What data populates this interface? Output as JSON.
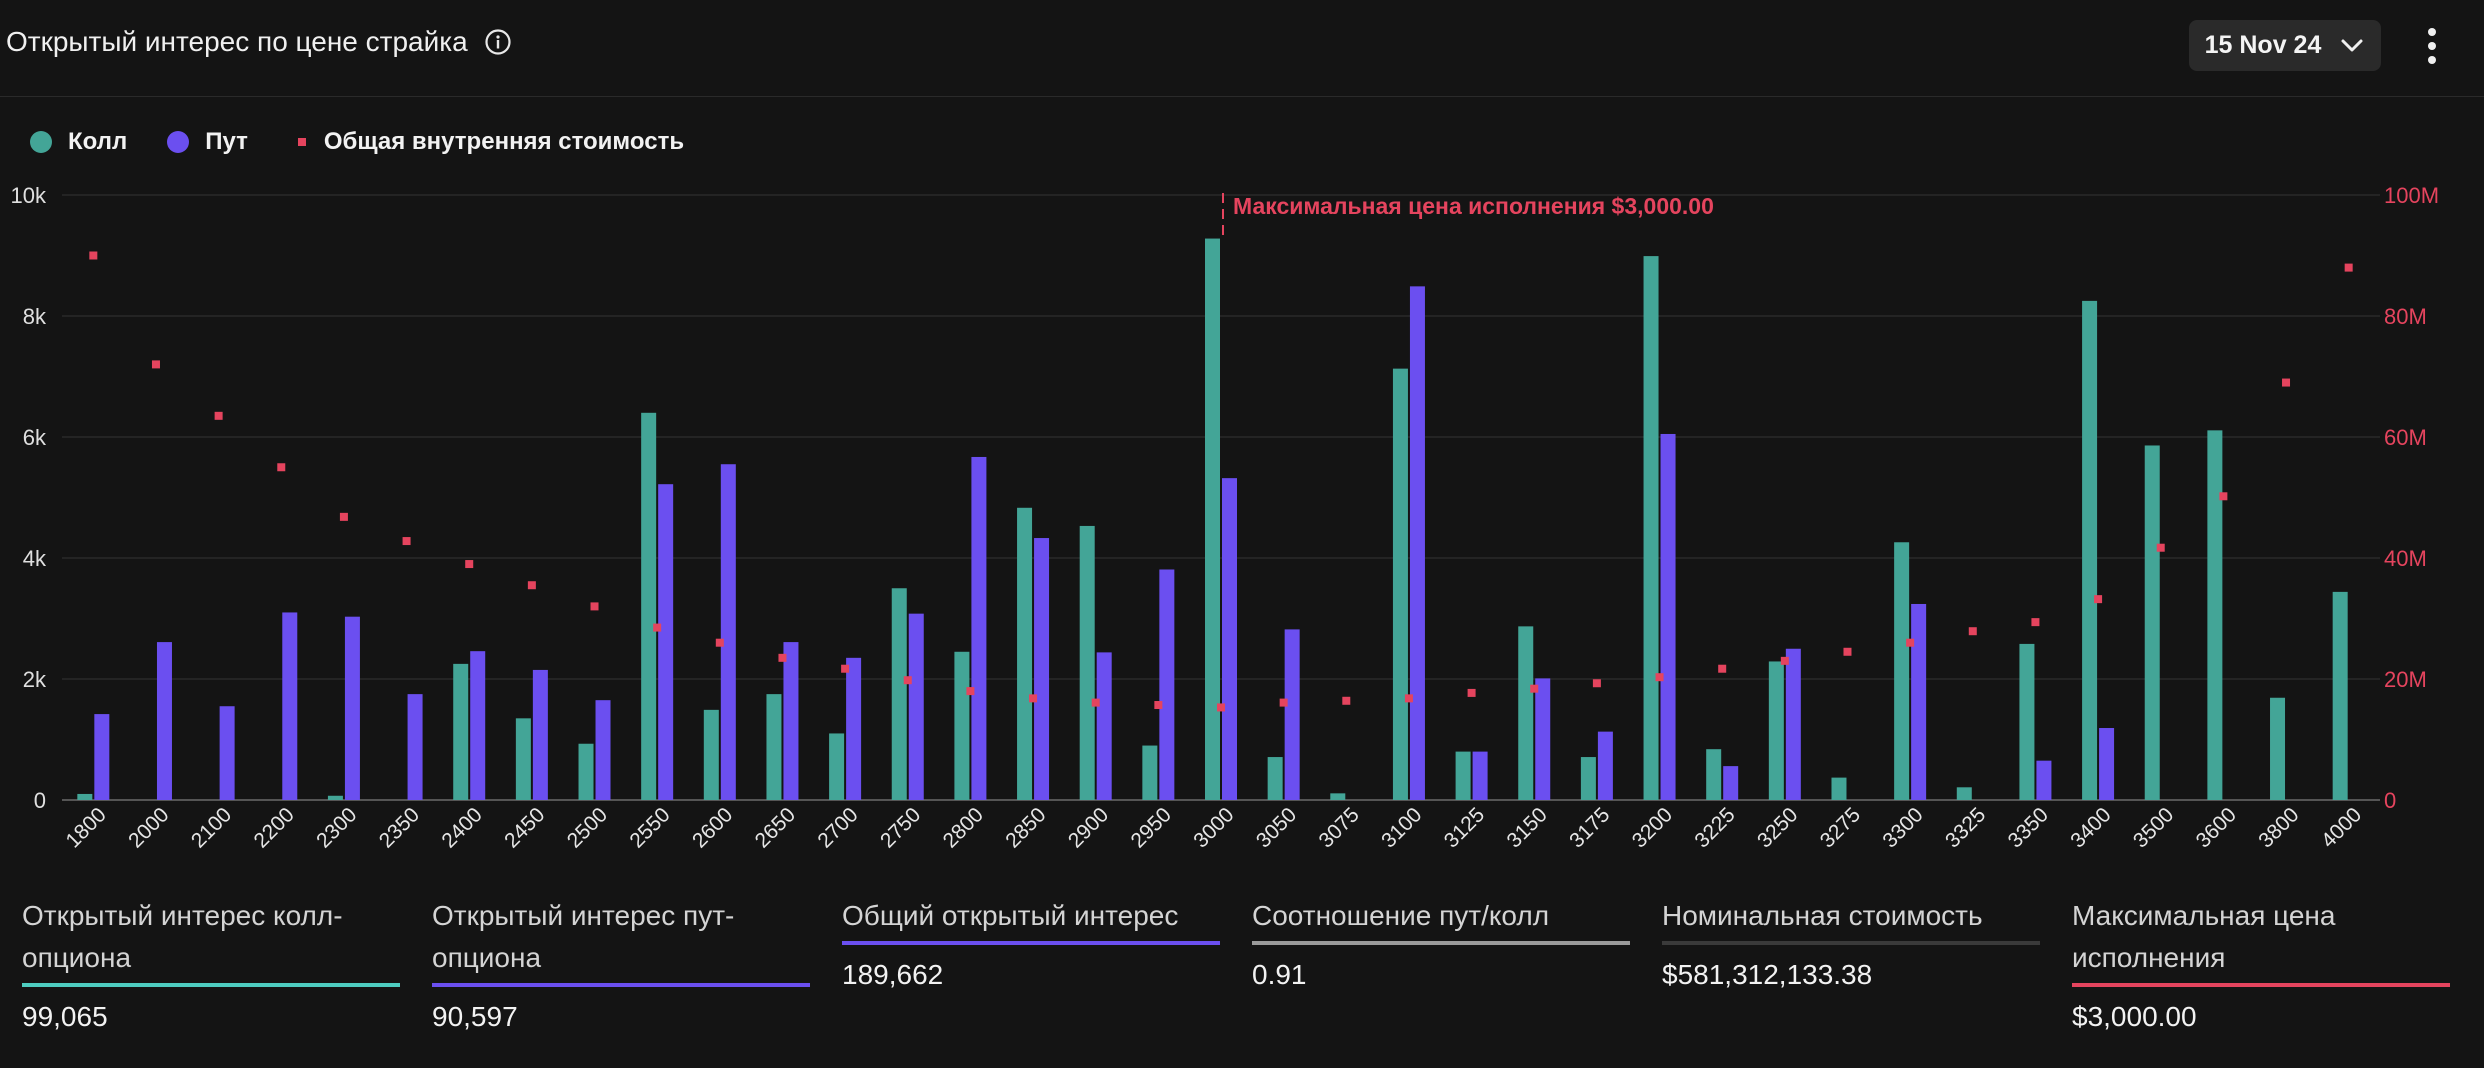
{
  "header": {
    "title": "Открытый интерес по цене страйка",
    "date": "15 Nov 24"
  },
  "legend": {
    "call": "Колл",
    "put": "Пут",
    "intrinsic": "Общая внутренняя стоимость"
  },
  "colors": {
    "call": "#43a597",
    "put": "#6b4ff0",
    "intrinsic": "#e5445e",
    "background": "#141414"
  },
  "chart_data": {
    "type": "bar",
    "title": "Открытый интерес по цене страйка",
    "categories": [
      "1800",
      "2000",
      "2100",
      "2200",
      "2300",
      "2350",
      "2400",
      "2450",
      "2500",
      "2550",
      "2600",
      "2650",
      "2700",
      "2750",
      "2800",
      "2850",
      "2900",
      "2950",
      "3000",
      "3050",
      "3075",
      "3100",
      "3125",
      "3150",
      "3175",
      "3200",
      "3225",
      "3250",
      "3275",
      "3300",
      "3325",
      "3350",
      "3400",
      "3500",
      "3600",
      "3800",
      "4000"
    ],
    "series": [
      {
        "name": "Колл",
        "axis": "left",
        "values": [
          100,
          0,
          0,
          0,
          70,
          0,
          2250,
          1350,
          930,
          6400,
          1490,
          1750,
          1100,
          3500,
          2450,
          4830,
          4530,
          900,
          9280,
          710,
          110,
          7130,
          800,
          2870,
          710,
          8990,
          840,
          2290,
          370,
          4260,
          210,
          2580,
          8250,
          5860,
          6110,
          1690,
          3440
        ]
      },
      {
        "name": "Пут",
        "axis": "left",
        "values": [
          1420,
          2610,
          1550,
          3100,
          3030,
          1750,
          2460,
          2150,
          1650,
          5220,
          5550,
          2610,
          2350,
          3080,
          5670,
          4330,
          2440,
          3810,
          5320,
          2820,
          0,
          8490,
          800,
          2010,
          1130,
          6050,
          560,
          2500,
          0,
          3240,
          0,
          650,
          1190,
          0,
          0,
          0,
          0
        ]
      },
      {
        "name": "Общая внутренняя стоимость",
        "type": "scatter",
        "axis": "right",
        "values": [
          90000000,
          72000000,
          63500000,
          55000000,
          46800000,
          42800000,
          39000000,
          35500000,
          32000000,
          28500000,
          26000000,
          23500000,
          21700000,
          19800000,
          18000000,
          16800000,
          16100000,
          15700000,
          15300000,
          16100000,
          16400000,
          16800000,
          17700000,
          18400000,
          19300000,
          20300000,
          21700000,
          23000000,
          24500000,
          26000000,
          27900000,
          29400000,
          33200000,
          41700000,
          50200000,
          69000000,
          88000000
        ]
      }
    ],
    "ylim": [
      0,
      10000
    ],
    "y_ticks": [
      "0",
      "2k",
      "4k",
      "6k",
      "8k",
      "10k"
    ],
    "y2lim": [
      0,
      100000000
    ],
    "y2_ticks": [
      "0",
      "20M",
      "40M",
      "60M",
      "80M",
      "100M"
    ],
    "max_pain": {
      "category": "3000",
      "label": "Максимальная цена исполнения $3,000.00"
    },
    "legend_position": "top-left",
    "grid": true
  },
  "stats": [
    {
      "label": "Открытый интерес колл-опциона",
      "value": "99,065",
      "color": "#4ecdc0"
    },
    {
      "label": "Открытый интерес пут-опциона",
      "value": "90,597",
      "color": "#6b4ff0"
    },
    {
      "label": "Общий открытый интерес",
      "value": "189,662",
      "color": "#6b4ff0"
    },
    {
      "label": "Соотношение пут/колл",
      "value": "0.91",
      "color": "#9a9a9a"
    },
    {
      "label": "Номинальная стоимость",
      "value": "$581,312,133.38",
      "color": "#3a3a3a"
    },
    {
      "label": "Максимальная цена исполнения",
      "value": "$3,000.00",
      "color": "#e5445e"
    }
  ]
}
